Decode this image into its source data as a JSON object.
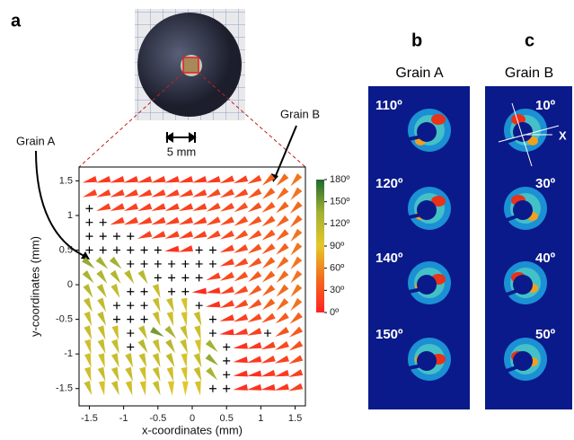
{
  "panels": {
    "a": "a",
    "b": "b",
    "c": "c"
  },
  "photo": {
    "scale": "5 mm"
  },
  "annotations": {
    "grain_a": "Grain A",
    "grain_b": "Grain B"
  },
  "panel_b": {
    "title": "Grain A",
    "angles": [
      "110º",
      "120º",
      "140º",
      "150º"
    ]
  },
  "panel_c": {
    "title": "Grain B",
    "angles": [
      "10º",
      "30º",
      "40º",
      "50º"
    ],
    "axis": "X"
  },
  "chart_data": {
    "type": "orientation-map",
    "xlabel": "x-coordinates (mm)",
    "ylabel": "y-coordinates (mm)",
    "x": [
      -1.5,
      -1.3,
      -1.1,
      -0.9,
      -0.7,
      -0.5,
      -0.3,
      -0.1,
      0.1,
      0.3,
      0.5,
      0.7,
      0.9,
      1.1,
      1.3,
      1.5
    ],
    "y": [
      1.5,
      1.3,
      1.1,
      0.9,
      0.7,
      0.5,
      0.3,
      0.1,
      -0.1,
      -0.3,
      -0.5,
      -0.7,
      -0.9,
      -1.1,
      -1.3,
      -1.5
    ],
    "angles": [
      [
        15,
        15,
        15,
        15,
        15,
        15,
        15,
        15,
        15,
        15,
        20,
        20,
        25,
        40,
        45,
        50
      ],
      [
        20,
        20,
        20,
        20,
        20,
        20,
        20,
        20,
        20,
        25,
        25,
        25,
        30,
        40,
        45,
        50
      ],
      [
        null,
        20,
        20,
        20,
        20,
        20,
        20,
        20,
        20,
        25,
        25,
        30,
        30,
        35,
        40,
        45
      ],
      [
        null,
        null,
        20,
        20,
        20,
        20,
        20,
        20,
        20,
        25,
        25,
        30,
        30,
        35,
        40,
        45
      ],
      [
        null,
        null,
        null,
        null,
        20,
        20,
        20,
        20,
        20,
        25,
        25,
        30,
        30,
        35,
        40,
        50
      ],
      [
        null,
        null,
        null,
        null,
        null,
        null,
        10,
        15,
        null,
        null,
        20,
        25,
        30,
        35,
        40,
        50
      ],
      [
        140,
        135,
        135,
        null,
        null,
        null,
        null,
        null,
        null,
        null,
        20,
        25,
        30,
        40,
        45,
        50
      ],
      [
        130,
        125,
        125,
        120,
        120,
        null,
        null,
        null,
        null,
        20,
        25,
        30,
        35,
        40,
        45,
        50
      ],
      [
        120,
        120,
        115,
        null,
        null,
        110,
        null,
        null,
        5,
        10,
        20,
        25,
        35,
        40,
        45,
        50
      ],
      [
        115,
        115,
        null,
        null,
        null,
        110,
        110,
        100,
        null,
        10,
        20,
        25,
        30,
        40,
        45,
        50
      ],
      [
        110,
        115,
        null,
        null,
        null,
        110,
        105,
        100,
        110,
        null,
        15,
        20,
        25,
        30,
        35,
        40
      ],
      [
        110,
        110,
        105,
        null,
        115,
        150,
        130,
        110,
        105,
        null,
        10,
        15,
        20,
        null,
        30,
        35
      ],
      [
        105,
        110,
        110,
        null,
        120,
        110,
        120,
        110,
        100,
        135,
        null,
        10,
        15,
        20,
        25,
        30
      ],
      [
        105,
        105,
        110,
        110,
        110,
        110,
        115,
        100,
        110,
        140,
        null,
        10,
        15,
        20,
        20,
        25
      ],
      [
        105,
        110,
        110,
        110,
        105,
        110,
        105,
        100,
        110,
        130,
        null,
        10,
        10,
        15,
        15,
        20
      ],
      [
        110,
        100,
        110,
        105,
        100,
        110,
        95,
        90,
        100,
        null,
        null,
        10,
        10,
        10,
        15,
        20
      ]
    ],
    "xlim": [
      -1.65,
      1.65
    ],
    "ylim": [
      -1.75,
      1.7
    ],
    "xticks": [
      -1.5,
      -1,
      -0.5,
      0,
      0.5,
      1,
      1.5
    ],
    "yticks": [
      -1.5,
      -1,
      -0.5,
      0,
      0.5,
      1,
      1.5
    ],
    "clim": [
      0,
      180
    ],
    "colorticks": [
      {
        "value": 0,
        "label": "0º"
      },
      {
        "value": 30,
        "label": "30º"
      },
      {
        "value": 60,
        "label": "60º"
      },
      {
        "value": 90,
        "label": "90º"
      },
      {
        "value": 120,
        "label": "120º"
      },
      {
        "value": 150,
        "label": "150º"
      },
      {
        "value": 180,
        "label": "180º"
      }
    ],
    "colormap": [
      "#ff2222",
      "#f26b1e",
      "#e6c62a",
      "#a3b233",
      "#1e6a32"
    ]
  }
}
